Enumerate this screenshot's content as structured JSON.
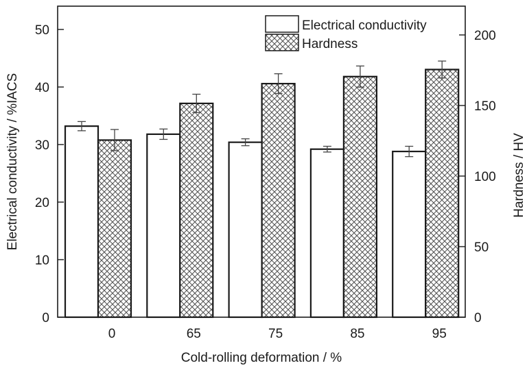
{
  "chart_data": {
    "type": "bar",
    "title": "",
    "xlabel": "Cold-rolling deformation / %",
    "ylabel": "Electrical conductivity / %IACS",
    "y2label": "Hardness / HV",
    "categories": [
      "0",
      "65",
      "75",
      "85",
      "95"
    ],
    "ylim": [
      0,
      54
    ],
    "y2lim": [
      0,
      220
    ],
    "yticks": [
      0,
      10,
      20,
      30,
      40,
      50
    ],
    "y2ticks": [
      0,
      50,
      100,
      150,
      200
    ],
    "legend_position": "top-right",
    "series": [
      {
        "name": "Electrical conductivity",
        "axis": "left",
        "pattern": "none",
        "values": [
          33.2,
          31.8,
          30.4,
          29.2,
          28.8
        ],
        "errors": [
          0.8,
          0.9,
          0.6,
          0.5,
          0.9
        ]
      },
      {
        "name": "Hardness",
        "axis": "right",
        "pattern": "crosshatch",
        "values": [
          125.5,
          151.5,
          165.5,
          170.5,
          175.5
        ],
        "errors": [
          7.5,
          6.5,
          7,
          7.5,
          6
        ]
      }
    ],
    "colors": {
      "axis": "#1a1a1a",
      "bar_fill": "#ffffff",
      "hatch": "#555555"
    }
  }
}
